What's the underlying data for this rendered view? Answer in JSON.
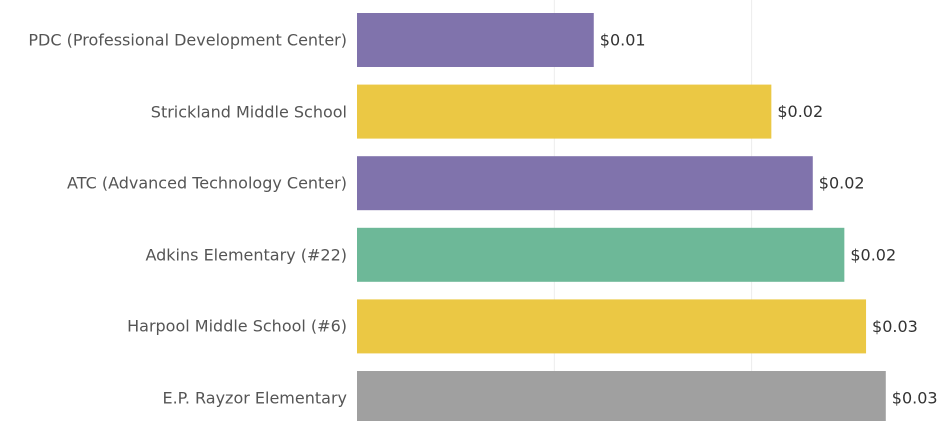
{
  "chart_data": {
    "type": "bar",
    "orientation": "horizontal",
    "categories": [
      "PDC (Professional Development Center)",
      "Strickland Middle School",
      "ATC (Advanced Technology Center)",
      "Adkins Elementary (#22)",
      "Harpool Middle School (#6)",
      "E.P. Rayzor Elementary"
    ],
    "series": [
      {
        "values": [
          0.012,
          0.021,
          0.0231,
          0.0247,
          0.0258,
          0.0268
        ],
        "value_labels": [
          "$0.01",
          "$0.02",
          "$0.02",
          "$0.02",
          "$0.03",
          "$0.03"
        ],
        "colors": [
          "#8073ac",
          "#ebc844",
          "#8073ac",
          "#6db898",
          "#ebc844",
          "#a0a0a0"
        ]
      }
    ],
    "xlim": [
      0,
      0.0297
    ],
    "gridlines": [
      0.01,
      0.02
    ],
    "grid": true
  }
}
